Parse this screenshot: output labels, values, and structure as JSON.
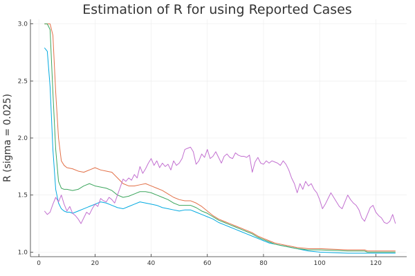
{
  "chart_data": {
    "type": "line",
    "title": "Estimation of R for        using Reported Cases",
    "xlabel": "",
    "ylabel": "R (sigma = 0.025)",
    "xlim": [
      -3,
      131
    ],
    "ylim": [
      0.96,
      3.04
    ],
    "xticks": [
      0,
      20,
      40,
      60,
      80,
      100,
      120
    ],
    "xtick_labels": [
      "0",
      "20",
      "40",
      "60",
      "80",
      "100",
      "120"
    ],
    "yticks": [
      1.0,
      1.5,
      2.0,
      2.5,
      3.0
    ],
    "ytick_labels": [
      "1.0",
      "1.5",
      "2.0",
      "2.5",
      "3.0"
    ],
    "grid": true,
    "legend": "none",
    "series": [
      {
        "color": "#00a9e0",
        "points": [
          [
            2,
            2.79
          ],
          [
            3,
            2.76
          ],
          [
            4,
            2.45
          ],
          [
            5,
            1.9
          ],
          [
            6,
            1.55
          ],
          [
            7,
            1.43
          ],
          [
            8,
            1.38
          ],
          [
            9,
            1.36
          ],
          [
            10,
            1.35
          ],
          [
            11,
            1.35
          ],
          [
            12,
            1.34
          ],
          [
            14,
            1.36
          ],
          [
            16,
            1.38
          ],
          [
            18,
            1.4
          ],
          [
            20,
            1.42
          ],
          [
            22,
            1.44
          ],
          [
            24,
            1.43
          ],
          [
            26,
            1.41
          ],
          [
            28,
            1.39
          ],
          [
            30,
            1.38
          ],
          [
            32,
            1.4
          ],
          [
            34,
            1.42
          ],
          [
            36,
            1.44
          ],
          [
            38,
            1.43
          ],
          [
            40,
            1.42
          ],
          [
            42,
            1.41
          ],
          [
            44,
            1.39
          ],
          [
            46,
            1.38
          ],
          [
            48,
            1.37
          ],
          [
            50,
            1.36
          ],
          [
            52,
            1.37
          ],
          [
            54,
            1.37
          ],
          [
            56,
            1.35
          ],
          [
            58,
            1.33
          ],
          [
            60,
            1.31
          ],
          [
            62,
            1.29
          ],
          [
            64,
            1.26
          ],
          [
            66,
            1.24
          ],
          [
            68,
            1.22
          ],
          [
            70,
            1.2
          ],
          [
            72,
            1.18
          ],
          [
            74,
            1.16
          ],
          [
            76,
            1.14
          ],
          [
            78,
            1.12
          ],
          [
            80,
            1.1
          ],
          [
            82,
            1.08
          ],
          [
            84,
            1.07
          ],
          [
            86,
            1.06
          ],
          [
            88,
            1.05
          ],
          [
            90,
            1.04
          ],
          [
            92,
            1.03
          ],
          [
            94,
            1.02
          ],
          [
            96,
            1.01
          ],
          [
            100,
            1.0
          ],
          [
            110,
            0.99
          ],
          [
            117,
            0.99
          ],
          [
            118,
            0.99
          ],
          [
            126,
            0.99
          ],
          [
            127,
            0.99
          ]
        ]
      },
      {
        "color": "#e26f46",
        "points": [
          [
            2,
            3.0
          ],
          [
            4,
            3.0
          ],
          [
            5,
            2.9
          ],
          [
            6,
            2.4
          ],
          [
            7,
            2.0
          ],
          [
            8,
            1.8
          ],
          [
            9,
            1.76
          ],
          [
            10,
            1.74
          ],
          [
            12,
            1.73
          ],
          [
            14,
            1.71
          ],
          [
            16,
            1.7
          ],
          [
            18,
            1.72
          ],
          [
            20,
            1.74
          ],
          [
            22,
            1.72
          ],
          [
            24,
            1.71
          ],
          [
            26,
            1.7
          ],
          [
            28,
            1.65
          ],
          [
            30,
            1.6
          ],
          [
            32,
            1.58
          ],
          [
            34,
            1.58
          ],
          [
            36,
            1.59
          ],
          [
            38,
            1.6
          ],
          [
            40,
            1.58
          ],
          [
            42,
            1.56
          ],
          [
            44,
            1.54
          ],
          [
            46,
            1.51
          ],
          [
            48,
            1.48
          ],
          [
            50,
            1.46
          ],
          [
            52,
            1.45
          ],
          [
            54,
            1.45
          ],
          [
            56,
            1.43
          ],
          [
            58,
            1.4
          ],
          [
            60,
            1.36
          ],
          [
            62,
            1.32
          ],
          [
            64,
            1.29
          ],
          [
            66,
            1.27
          ],
          [
            68,
            1.25
          ],
          [
            70,
            1.23
          ],
          [
            72,
            1.21
          ],
          [
            74,
            1.19
          ],
          [
            76,
            1.17
          ],
          [
            78,
            1.14
          ],
          [
            80,
            1.12
          ],
          [
            82,
            1.1
          ],
          [
            84,
            1.08
          ],
          [
            86,
            1.07
          ],
          [
            88,
            1.06
          ],
          [
            90,
            1.05
          ],
          [
            92,
            1.04
          ],
          [
            96,
            1.03
          ],
          [
            100,
            1.03
          ],
          [
            110,
            1.02
          ],
          [
            116,
            1.02
          ],
          [
            117,
            1.01
          ],
          [
            126,
            1.01
          ],
          [
            127,
            1.01
          ]
        ]
      },
      {
        "color": "#3ba55c",
        "points": [
          [
            2,
            3.0
          ],
          [
            3,
            3.0
          ],
          [
            4,
            2.95
          ],
          [
            5,
            2.4
          ],
          [
            6,
            1.9
          ],
          [
            7,
            1.62
          ],
          [
            8,
            1.56
          ],
          [
            9,
            1.55
          ],
          [
            10,
            1.55
          ],
          [
            12,
            1.54
          ],
          [
            14,
            1.55
          ],
          [
            16,
            1.58
          ],
          [
            18,
            1.6
          ],
          [
            20,
            1.58
          ],
          [
            22,
            1.57
          ],
          [
            24,
            1.56
          ],
          [
            26,
            1.54
          ],
          [
            28,
            1.5
          ],
          [
            30,
            1.48
          ],
          [
            32,
            1.49
          ],
          [
            34,
            1.51
          ],
          [
            36,
            1.53
          ],
          [
            38,
            1.53
          ],
          [
            40,
            1.52
          ],
          [
            42,
            1.5
          ],
          [
            44,
            1.48
          ],
          [
            46,
            1.46
          ],
          [
            48,
            1.43
          ],
          [
            50,
            1.41
          ],
          [
            52,
            1.41
          ],
          [
            54,
            1.41
          ],
          [
            56,
            1.39
          ],
          [
            58,
            1.36
          ],
          [
            60,
            1.34
          ],
          [
            62,
            1.31
          ],
          [
            64,
            1.28
          ],
          [
            66,
            1.26
          ],
          [
            68,
            1.24
          ],
          [
            70,
            1.22
          ],
          [
            72,
            1.2
          ],
          [
            74,
            1.18
          ],
          [
            76,
            1.16
          ],
          [
            78,
            1.13
          ],
          [
            80,
            1.11
          ],
          [
            82,
            1.09
          ],
          [
            84,
            1.07
          ],
          [
            86,
            1.06
          ],
          [
            88,
            1.05
          ],
          [
            90,
            1.04
          ],
          [
            92,
            1.03
          ],
          [
            96,
            1.02
          ],
          [
            100,
            1.02
          ],
          [
            110,
            1.01
          ],
          [
            116,
            1.01
          ],
          [
            117,
            1.0
          ],
          [
            126,
            1.0
          ],
          [
            127,
            1.0
          ]
        ]
      },
      {
        "color": "#c26fd0",
        "points": [
          [
            2,
            1.36
          ],
          [
            3,
            1.33
          ],
          [
            4,
            1.35
          ],
          [
            5,
            1.42
          ],
          [
            6,
            1.48
          ],
          [
            7,
            1.44
          ],
          [
            8,
            1.5
          ],
          [
            9,
            1.42
          ],
          [
            10,
            1.36
          ],
          [
            11,
            1.4
          ],
          [
            12,
            1.34
          ],
          [
            13,
            1.32
          ],
          [
            14,
            1.29
          ],
          [
            15,
            1.25
          ],
          [
            16,
            1.3
          ],
          [
            17,
            1.35
          ],
          [
            18,
            1.33
          ],
          [
            19,
            1.38
          ],
          [
            20,
            1.42
          ],
          [
            21,
            1.4
          ],
          [
            22,
            1.47
          ],
          [
            23,
            1.45
          ],
          [
            24,
            1.44
          ],
          [
            25,
            1.48
          ],
          [
            26,
            1.46
          ],
          [
            27,
            1.43
          ],
          [
            28,
            1.5
          ],
          [
            29,
            1.57
          ],
          [
            30,
            1.64
          ],
          [
            31,
            1.62
          ],
          [
            32,
            1.65
          ],
          [
            33,
            1.63
          ],
          [
            34,
            1.68
          ],
          [
            35,
            1.65
          ],
          [
            36,
            1.75
          ],
          [
            37,
            1.69
          ],
          [
            38,
            1.73
          ],
          [
            39,
            1.78
          ],
          [
            40,
            1.82
          ],
          [
            41,
            1.76
          ],
          [
            42,
            1.8
          ],
          [
            43,
            1.74
          ],
          [
            44,
            1.78
          ],
          [
            45,
            1.75
          ],
          [
            46,
            1.77
          ],
          [
            47,
            1.72
          ],
          [
            48,
            1.8
          ],
          [
            49,
            1.76
          ],
          [
            50,
            1.78
          ],
          [
            51,
            1.82
          ],
          [
            52,
            1.9
          ],
          [
            53,
            1.91
          ],
          [
            54,
            1.92
          ],
          [
            55,
            1.88
          ],
          [
            56,
            1.77
          ],
          [
            57,
            1.8
          ],
          [
            58,
            1.86
          ],
          [
            59,
            1.83
          ],
          [
            60,
            1.9
          ],
          [
            61,
            1.82
          ],
          [
            62,
            1.84
          ],
          [
            63,
            1.88
          ],
          [
            64,
            1.83
          ],
          [
            65,
            1.78
          ],
          [
            66,
            1.84
          ],
          [
            67,
            1.86
          ],
          [
            68,
            1.83
          ],
          [
            69,
            1.82
          ],
          [
            70,
            1.87
          ],
          [
            71,
            1.85
          ],
          [
            72,
            1.84
          ],
          [
            73,
            1.84
          ],
          [
            74,
            1.83
          ],
          [
            75,
            1.85
          ],
          [
            76,
            1.7
          ],
          [
            77,
            1.79
          ],
          [
            78,
            1.83
          ],
          [
            79,
            1.78
          ],
          [
            80,
            1.77
          ],
          [
            81,
            1.8
          ],
          [
            82,
            1.78
          ],
          [
            83,
            1.8
          ],
          [
            84,
            1.79
          ],
          [
            85,
            1.78
          ],
          [
            86,
            1.76
          ],
          [
            87,
            1.8
          ],
          [
            88,
            1.77
          ],
          [
            89,
            1.72
          ],
          [
            90,
            1.65
          ],
          [
            91,
            1.6
          ],
          [
            92,
            1.52
          ],
          [
            93,
            1.6
          ],
          [
            94,
            1.55
          ],
          [
            95,
            1.62
          ],
          [
            96,
            1.58
          ],
          [
            97,
            1.6
          ],
          [
            98,
            1.55
          ],
          [
            99,
            1.52
          ],
          [
            100,
            1.46
          ],
          [
            101,
            1.38
          ],
          [
            102,
            1.42
          ],
          [
            103,
            1.47
          ],
          [
            104,
            1.52
          ],
          [
            105,
            1.48
          ],
          [
            106,
            1.44
          ],
          [
            107,
            1.4
          ],
          [
            108,
            1.38
          ],
          [
            109,
            1.44
          ],
          [
            110,
            1.5
          ],
          [
            111,
            1.46
          ],
          [
            112,
            1.43
          ],
          [
            113,
            1.41
          ],
          [
            114,
            1.37
          ],
          [
            115,
            1.3
          ],
          [
            116,
            1.27
          ],
          [
            117,
            1.33
          ],
          [
            118,
            1.39
          ],
          [
            119,
            1.41
          ],
          [
            120,
            1.35
          ],
          [
            121,
            1.32
          ],
          [
            122,
            1.3
          ],
          [
            123,
            1.26
          ],
          [
            124,
            1.25
          ],
          [
            125,
            1.27
          ],
          [
            126,
            1.33
          ],
          [
            127,
            1.25
          ]
        ]
      }
    ]
  }
}
